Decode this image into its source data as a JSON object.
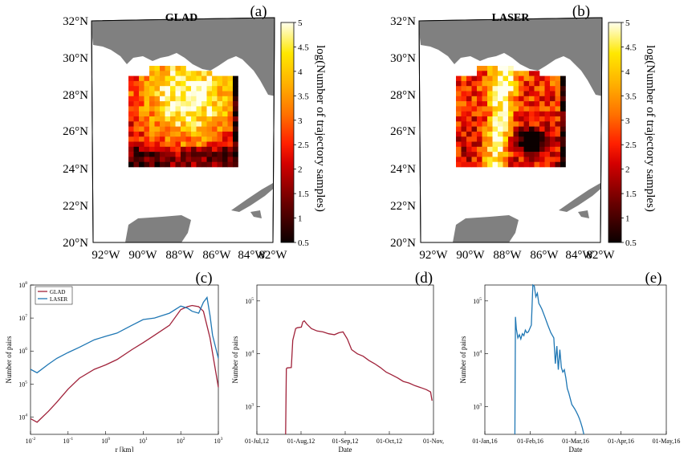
{
  "panels": {
    "a": {
      "label": "(a)",
      "title": "GLAD"
    },
    "b": {
      "label": "(b)",
      "title": "LASER"
    },
    "c": {
      "label": "(c)"
    },
    "d": {
      "label": "(d)"
    },
    "e": {
      "label": "(e)"
    }
  },
  "map": {
    "lat_ticks": [
      "32°N",
      "30°N",
      "28°N",
      "26°N",
      "24°N",
      "22°N",
      "20°N"
    ],
    "lon_ticks": [
      "92°W",
      "90°W",
      "88°W",
      "86°W",
      "84°W",
      "82°W"
    ],
    "land_color": "#808080",
    "ocean_color": "#ffffff",
    "nodata_color": "#1a0000"
  },
  "colorbar": {
    "label": "log(Number of trajectory samples)",
    "ticks": [
      "5",
      "4.5",
      "4",
      "3.5",
      "3",
      "2.5",
      "2",
      "1.5",
      "1",
      "0.5"
    ],
    "colormap": "hot",
    "range": [
      0.5,
      5
    ]
  },
  "chart_data": [
    {
      "type": "line",
      "panel": "c",
      "xlabel": "r [km]",
      "ylabel": "Number of pairs",
      "xscale": "log",
      "yscale": "log",
      "xlim": [
        0.01,
        1000
      ],
      "ylim": [
        3000,
        100000000
      ],
      "x_ticks": [
        "10-2",
        "10-1",
        "100",
        "101",
        "102",
        "103"
      ],
      "y_ticks": [
        "104",
        "105",
        "106",
        "107",
        "108"
      ],
      "legend": [
        "GLAD",
        "LASER"
      ],
      "legend_position": "top-left",
      "series": [
        {
          "name": "GLAD",
          "color": "#a0223a",
          "x": [
            0.01,
            0.015,
            0.03,
            0.05,
            0.1,
            0.2,
            0.5,
            1,
            2,
            5,
            10,
            20,
            50,
            100,
            150,
            200,
            300,
            400,
            600,
            1000
          ],
          "y": [
            9000,
            7000,
            15000,
            28000,
            70000,
            150000,
            280000,
            380000,
            550000,
            1100000,
            1800000,
            3000000,
            6000000,
            18000000,
            22000000,
            24000000,
            22000000,
            16000000,
            2500000,
            80000
          ]
        },
        {
          "name": "LASER",
          "color": "#1f77b4",
          "x": [
            0.01,
            0.015,
            0.03,
            0.05,
            0.1,
            0.2,
            0.5,
            1,
            2,
            5,
            10,
            20,
            50,
            100,
            150,
            200,
            300,
            400,
            500,
            600,
            700,
            1000
          ],
          "y": [
            280000,
            220000,
            400000,
            600000,
            900000,
            1300000,
            2200000,
            2800000,
            3500000,
            6000000,
            9000000,
            10000000,
            14000000,
            23000000,
            20000000,
            16000000,
            14000000,
            30000000,
            42000000,
            12000000,
            3000000,
            600000
          ]
        }
      ]
    },
    {
      "type": "line",
      "panel": "d",
      "xlabel": "Date",
      "ylabel": "Number of pairs",
      "yscale": "log",
      "xlim": [
        0,
        123
      ],
      "ylim": [
        300,
        200000
      ],
      "x_ticks": [
        "01-Jul,12",
        "01-Aug,12",
        "01-Sep,12",
        "01-Oct,12",
        "01-Nov,"
      ],
      "y_ticks": [
        "103",
        "104",
        "105"
      ],
      "series": [
        {
          "name": "GLAD",
          "color": "#a0223a",
          "x": [
            20,
            20.5,
            21,
            24,
            25,
            27,
            28,
            31,
            32,
            33,
            35,
            38,
            42,
            46,
            50,
            54,
            57,
            60,
            63,
            66,
            70,
            74,
            78,
            82,
            86,
            90,
            94,
            98,
            102,
            106,
            110,
            114,
            118,
            121,
            122
          ],
          "y": [
            300,
            5200,
            5400,
            5500,
            18000,
            30000,
            31000,
            32000,
            40000,
            42000,
            36000,
            30000,
            27000,
            26000,
            24000,
            23000,
            25000,
            26000,
            19000,
            12000,
            10000,
            9000,
            7500,
            6500,
            5500,
            4500,
            4000,
            3500,
            3000,
            2800,
            2500,
            2300,
            2100,
            1900,
            1300
          ]
        }
      ]
    },
    {
      "type": "line",
      "panel": "e",
      "xlabel": "Date",
      "ylabel": "Number of pairs",
      "yscale": "log",
      "xlim": [
        0,
        121
      ],
      "ylim": [
        300,
        200000
      ],
      "x_ticks": [
        "01-Jan,16",
        "01-Feb,16",
        "01-Mar,16",
        "01-Apr,16",
        "01-May,16"
      ],
      "y_ticks": [
        "103",
        "104",
        "105"
      ],
      "series": [
        {
          "name": "LASER",
          "color": "#1f77b4",
          "x": [
            20,
            20.4,
            21,
            22,
            23,
            24,
            25,
            26,
            27,
            28,
            29,
            30,
            31,
            32,
            33,
            34,
            35,
            36,
            37,
            38,
            40,
            42,
            44,
            46,
            47,
            48,
            49,
            50,
            51,
            52,
            53,
            54,
            55,
            56,
            57,
            58,
            59,
            60,
            61,
            62,
            63,
            64,
            65,
            66
          ],
          "y": [
            300,
            50000,
            30000,
            20000,
            23000,
            19000,
            24000,
            22000,
            28000,
            25000,
            26000,
            30000,
            35000,
            200000,
            190000,
            120000,
            140000,
            90000,
            80000,
            70000,
            50000,
            35000,
            25000,
            20000,
            6500,
            14000,
            5000,
            12000,
            5500,
            4500,
            5000,
            3500,
            2200,
            1800,
            1400,
            1100,
            1000,
            900,
            800,
            700,
            600,
            500,
            400,
            300
          ]
        }
      ]
    }
  ]
}
